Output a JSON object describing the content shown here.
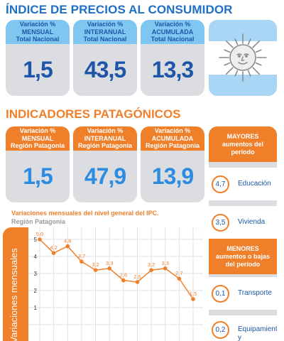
{
  "ipc": {
    "title": "ÍNDICE DE PRECIOS AL CONSUMIDOR",
    "cards": [
      {
        "line1": "Variación %",
        "line2": "MENSUAL",
        "line3": "Total Nacional",
        "value": "1,5"
      },
      {
        "line1": "Variación %",
        "line2": "INTERANUAL",
        "line3": "Total Nacional",
        "value": "43,5"
      },
      {
        "line1": "Variación %",
        "line2": "ACUMULADA",
        "line3": "Total Nacional",
        "value": "13,3"
      }
    ]
  },
  "patagonia": {
    "title": "INDICADORES PATAGÓNICOS",
    "cards": [
      {
        "line1": "Variación %",
        "line2": "MENSUAL",
        "line3": "Región Patagonia",
        "value": "1,5"
      },
      {
        "line1": "Variación %",
        "line2": "INTERANUAL",
        "line3": "Región Patagonia",
        "value": "47,9"
      },
      {
        "line1": "Variación %",
        "line2": "ACUMULADA",
        "line3": "Región Patagonia",
        "value": "13,9"
      }
    ]
  },
  "sidebar": {
    "mayores": {
      "line1": "MAYORES",
      "line2": "aumentos del",
      "line3": "período"
    },
    "mayores_items": [
      {
        "value": "4,7",
        "label": "Educación"
      },
      {
        "value": "3,5",
        "label": "Vivienda"
      }
    ],
    "menores": {
      "line1": "MENORES",
      "line2": "aumentos o bajas",
      "line3": "del período"
    },
    "menores_items": [
      {
        "value": "0,1",
        "label": "Transporte"
      },
      {
        "value": "0,2",
        "label": "Equipamiento y"
      }
    ]
  },
  "colors": {
    "blue": "#1d56a8",
    "light_blue": "#7fc7f1",
    "orange": "#f07f2a",
    "grey": "#dcdde1"
  },
  "chart_data": {
    "type": "line",
    "title": "Variaciones mensuales del nivel general del IPC.",
    "subtitle": "Región Patagonia",
    "ylabel": "Variaciones mensuales",
    "ylim": [
      0,
      5
    ],
    "yticks": [
      1,
      2,
      3,
      4,
      5
    ],
    "grid": true,
    "series": [
      {
        "values": [
          5.0,
          4.2,
          4.6,
          3.7,
          3.2,
          3.3,
          2.6,
          2.5,
          3.2,
          3.3,
          2.7,
          1.5
        ],
        "labels": [
          "5,0",
          "4,2",
          "4,6",
          "3,7",
          "3,2",
          "3,3",
          "2,6",
          "2,5",
          "3,2",
          "3,3",
          "2,7",
          "1,5"
        ]
      }
    ]
  }
}
